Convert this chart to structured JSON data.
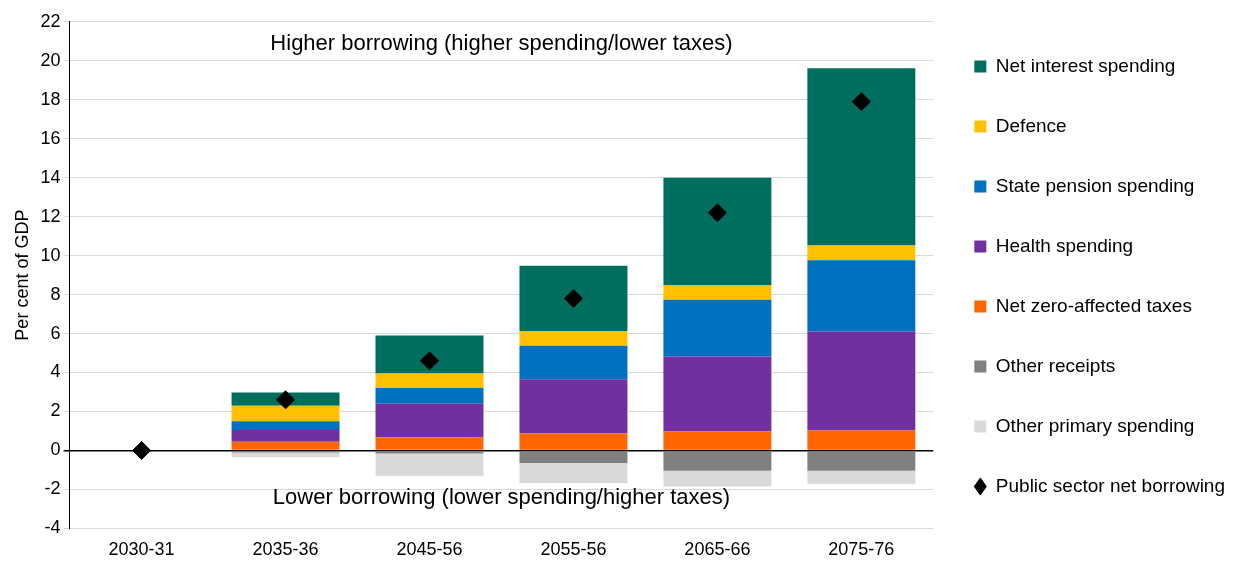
{
  "chart_data": {
    "type": "bar",
    "stacked": true,
    "ylabel": "Per cent of GDP",
    "categories": [
      "2030-31",
      "2035-36",
      "2045-56",
      "2055-56",
      "2065-66",
      "2075-76"
    ],
    "series": [
      {
        "name": "Other receipts",
        "color": "#808080",
        "values": [
          0,
          -0.1,
          -0.15,
          -0.64,
          -1.04,
          -1.04
        ]
      },
      {
        "name": "Other primary spending",
        "color": "#d9d9d9",
        "values": [
          0,
          -0.25,
          -1.15,
          -1.04,
          -0.81,
          -0.67
        ]
      },
      {
        "name": "Net zero-affected taxes",
        "color": "#ff6600",
        "values": [
          0,
          0.45,
          0.68,
          0.87,
          0.97,
          1.03
        ]
      },
      {
        "name": "Health spending",
        "color": "#7030a0",
        "values": [
          0,
          0.6,
          1.72,
          2.79,
          3.85,
          5.08
        ]
      },
      {
        "name": "State pension spending",
        "color": "#0070c0",
        "values": [
          0,
          0.45,
          0.8,
          1.71,
          2.91,
          3.65
        ]
      },
      {
        "name": "Defence",
        "color": "#ffc000",
        "values": [
          0,
          0.8,
          0.75,
          0.76,
          0.76,
          0.76
        ]
      },
      {
        "name": "Net interest spending",
        "color": "#006e5f",
        "values": [
          0,
          0.67,
          1.95,
          3.35,
          5.51,
          9.09
        ]
      },
      {
        "name": "Public sector net borrowing",
        "type": "scatter",
        "marker": "diamond",
        "color": "#000000",
        "x": [
          "2030-31",
          "2035-36",
          "2045-56",
          "2055-56",
          "2065-66",
          "2075-76"
        ],
        "values": [
          0,
          2.6,
          4.6,
          7.8,
          12.2,
          17.9
        ]
      }
    ],
    "ylim": [
      -4,
      22
    ],
    "yticks": [
      -4,
      -2,
      0,
      2,
      4,
      6,
      8,
      10,
      12,
      14,
      16,
      18,
      20,
      22
    ],
    "grid": "y",
    "legend": "right",
    "annotations": [
      "Higher borrowing (higher spending/lower taxes)",
      "Lower borrowing (lower spending/higher taxes)"
    ]
  }
}
